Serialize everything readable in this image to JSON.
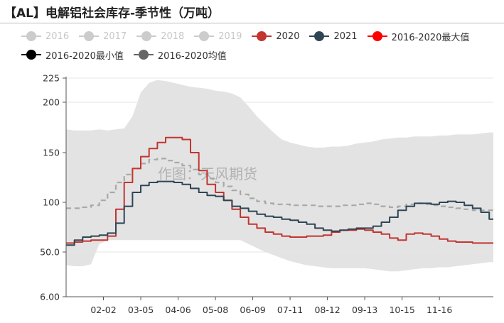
{
  "header": {
    "title": "【AL】电解铝社会库存-季节性（万吨）"
  },
  "legend": {
    "rows": [
      [
        {
          "label": "2016",
          "color": "#cccccc",
          "style": "dim"
        },
        {
          "label": "2017",
          "color": "#cccccc",
          "style": "dim"
        },
        {
          "label": "2018",
          "color": "#cccccc",
          "style": "dim"
        },
        {
          "label": "2019",
          "color": "#cccccc",
          "style": "dim"
        },
        {
          "label": "2020",
          "color": "#c23531",
          "style": "on"
        },
        {
          "label": "2021",
          "color": "#2f4554",
          "style": "on"
        },
        {
          "label": "2016-2020最大值",
          "color": "#ff0000",
          "style": "on"
        }
      ],
      [
        {
          "label": "2016-2020最小值",
          "color": "#000000",
          "style": "on"
        },
        {
          "label": "2016-2020均值",
          "color": "#666666",
          "style": "on"
        }
      ]
    ]
  },
  "watermark": "作图：天风期货",
  "chart_data": {
    "type": "line",
    "x_tick_labels": [
      "02-02",
      "03-05",
      "04-06",
      "05-08",
      "06-09",
      "07-11",
      "08-12",
      "09-13",
      "10-15",
      "11-16"
    ],
    "y_tick_labels": [
      "6.00",
      "50.0",
      "100",
      "150",
      "200",
      "225"
    ],
    "y_ticks": [
      6,
      50,
      100,
      150,
      200,
      225
    ],
    "ylim": [
      6,
      225
    ],
    "x_axis_type": "week-of-year",
    "xlim": [
      1,
      52.5
    ],
    "tick_weeks": [
      5.5,
      10,
      14.5,
      19,
      23.5,
      28,
      32.5,
      37,
      41.5,
      46
    ],
    "band": {
      "description": "range between 2016-2020 max and min",
      "color": "#e3e3e3",
      "weeks": [
        1,
        2,
        3,
        4,
        5,
        6,
        7,
        8,
        9,
        10,
        11,
        12,
        13,
        14,
        15,
        16,
        17,
        18,
        19,
        20,
        21,
        22,
        23,
        24,
        25,
        26,
        27,
        28,
        29,
        30,
        31,
        32,
        33,
        34,
        35,
        36,
        37,
        38,
        39,
        40,
        41,
        42,
        43,
        44,
        45,
        46,
        47,
        48,
        49,
        50,
        51,
        52
      ],
      "max": [
        173,
        172,
        172,
        172,
        173,
        172,
        173,
        174,
        186,
        210,
        220,
        223,
        222,
        220,
        218,
        216,
        215,
        214,
        212,
        211,
        209,
        205,
        196,
        186,
        178,
        170,
        163,
        160,
        158,
        156,
        155,
        155,
        156,
        156,
        157,
        159,
        160,
        161,
        163,
        164,
        165,
        165,
        166,
        166,
        166,
        167,
        167,
        168,
        168,
        168,
        169,
        170
      ],
      "min": [
        37,
        36,
        36,
        38,
        58,
        62,
        62,
        62,
        62,
        62,
        62,
        62,
        62,
        62,
        62,
        62,
        62,
        62,
        62,
        62,
        62,
        62,
        58,
        54,
        50,
        47,
        44,
        41,
        39,
        37,
        36,
        35,
        34,
        34,
        34,
        34,
        34,
        33,
        32,
        31,
        31,
        32,
        33,
        34,
        34,
        35,
        35,
        36,
        37,
        38,
        39,
        40
      ]
    },
    "series": [
      {
        "name": "2020",
        "color": "#c23531",
        "dash": "",
        "weeks": [
          1,
          2,
          3,
          4,
          5,
          6,
          7,
          8,
          9,
          10,
          11,
          12,
          13,
          14,
          15,
          16,
          17,
          18,
          19,
          20,
          21,
          22,
          23,
          24,
          25,
          26,
          27,
          28,
          29,
          30,
          31,
          32,
          33,
          34,
          35,
          36,
          37,
          38,
          39,
          40,
          41,
          42,
          43,
          44,
          45,
          46,
          47,
          48,
          49,
          50,
          51,
          52
        ],
        "values": [
          59,
          60,
          61,
          62,
          62,
          66,
          93,
          120,
          134,
          146,
          154,
          160,
          165,
          165,
          163,
          150,
          132,
          118,
          110,
          102,
          93,
          85,
          78,
          74,
          70,
          68,
          66,
          65,
          65,
          66,
          66,
          67,
          70,
          72,
          72,
          73,
          72,
          70,
          68,
          64,
          62,
          68,
          69,
          68,
          66,
          63,
          61,
          60,
          60,
          59,
          59,
          59
        ]
      },
      {
        "name": "2021",
        "color": "#2f4554",
        "dash": "",
        "weeks": [
          1,
          2,
          3,
          4,
          5,
          6,
          7,
          8,
          9,
          10,
          11,
          12,
          13,
          14,
          15,
          16,
          17,
          18,
          19,
          20,
          21,
          22,
          23,
          24,
          25,
          26,
          27,
          28,
          29,
          30,
          31,
          32,
          33,
          34,
          35,
          36,
          37,
          38,
          39,
          40,
          41,
          42,
          43,
          44,
          45,
          46,
          47,
          48,
          49,
          50,
          51,
          52
        ],
        "values": [
          57,
          62,
          65,
          66,
          67,
          69,
          79,
          96,
          110,
          117,
          120,
          121,
          121,
          120,
          118,
          114,
          110,
          107,
          106,
          102,
          96,
          94,
          91,
          88,
          86,
          85,
          83,
          82,
          80,
          78,
          74,
          72,
          71,
          72,
          73,
          74,
          74,
          76,
          80,
          85,
          92,
          96,
          99,
          99,
          98,
          100,
          101,
          100,
          97,
          94,
          90,
          83
        ]
      },
      {
        "name": "2016-2020均值",
        "color": "#a8a8a8",
        "dash": "7,5",
        "weeks": [
          1,
          2,
          3,
          4,
          5,
          6,
          7,
          8,
          9,
          10,
          11,
          12,
          13,
          14,
          15,
          16,
          17,
          18,
          19,
          20,
          21,
          22,
          23,
          24,
          25,
          26,
          27,
          28,
          29,
          30,
          31,
          32,
          33,
          34,
          35,
          36,
          37,
          38,
          39,
          40,
          41,
          42,
          43,
          44,
          45,
          46,
          47,
          48,
          49,
          50,
          51,
          52
        ],
        "values": [
          94,
          94,
          95,
          97,
          102,
          110,
          120,
          128,
          134,
          139,
          143,
          144,
          142,
          140,
          137,
          133,
          128,
          124,
          120,
          116,
          112,
          108,
          104,
          101,
          99,
          98,
          98,
          97,
          97,
          97,
          96,
          96,
          96,
          97,
          97,
          98,
          99,
          98,
          96,
          95,
          96,
          98,
          99,
          98,
          97,
          96,
          95,
          94,
          93,
          92,
          92,
          92
        ]
      }
    ]
  }
}
